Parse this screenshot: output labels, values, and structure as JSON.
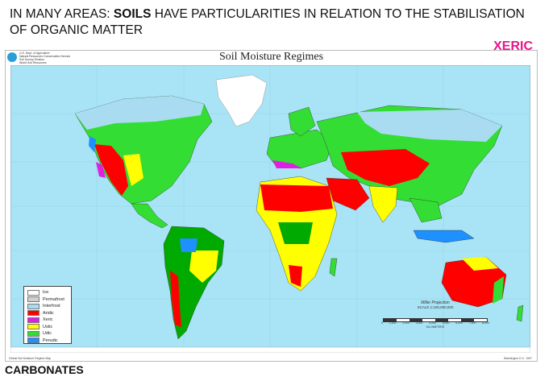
{
  "slide": {
    "title_prefix": "IN MANY AREAS: ",
    "title_bold": "SOILS",
    "title_suffix": " HAVE PARTICULARITIES IN RELATION TO THE STABILISATION OF ORGANIC MATTER",
    "tag": "XERIC",
    "footer_label": "CARBONATES"
  },
  "map": {
    "title": "Soil Moisture Regimes",
    "agency_lines": [
      "U.S. Dept. of Agriculture",
      "Natural Resources Conservation Service",
      "Soil Survey Division",
      "World Soil Resources"
    ],
    "colors": {
      "ocean": "#a8e4f5",
      "ice": "#ffffff",
      "permafrost": "#d0d0d0",
      "interfrost": "#a9dcf0",
      "aridic": "#ff0000",
      "xeric": "#e020e0",
      "ustic": "#ffff00",
      "udic": "#33dd33",
      "perudic": "#1e90ff",
      "tropical_udic": "#00aa00"
    },
    "legend": [
      {
        "label": "Ice",
        "color": "#ffffff"
      },
      {
        "label": "Permafrost",
        "color": "#d0d0d0"
      },
      {
        "label": "Interfrost",
        "color": "#a9dcf0"
      },
      {
        "label": "Aridic",
        "color": "#ff0000"
      },
      {
        "label": "Xeric",
        "color": "#e020e0"
      },
      {
        "label": "Ustic",
        "color": "#ffff00"
      },
      {
        "label": "Udic",
        "color": "#33dd33"
      },
      {
        "label": "Perudic",
        "color": "#1e90ff"
      }
    ],
    "projection": "Miller Projection",
    "scale": "SCALE 1:100,000,000",
    "scale_ticks": [
      "0",
      "1,000",
      "2,000",
      "3,000",
      "4,000",
      "5,000",
      "6,000",
      "7,000",
      "8,000"
    ],
    "scale_units": "KILOMETERS",
    "credit_left": "Global Soil Moisture Regime Map",
    "credit_right": "Washington D.C. 1997"
  }
}
